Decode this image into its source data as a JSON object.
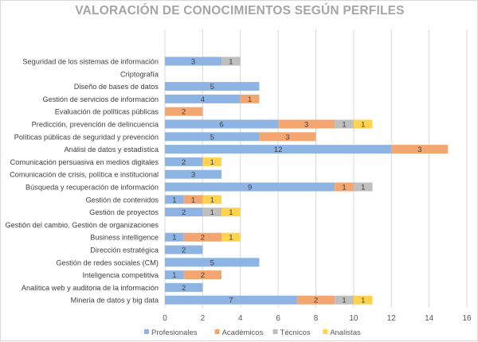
{
  "chart_data": {
    "type": "bar",
    "orientation": "horizontal",
    "stacked": true,
    "title": "VALORACIÓN DE CONOCIMIENTOS SEGÚN PERFILES",
    "xlabel": "",
    "ylabel": "",
    "xlim": [
      0,
      16
    ],
    "xticks": [
      0,
      2,
      4,
      6,
      8,
      10,
      12,
      14,
      16
    ],
    "grid": true,
    "legend_position": "bottom",
    "categories": [
      "Seguridad de los sistemas de información",
      "Criptografía",
      "Diseño de bases de datos",
      "Gestión de servicios de información",
      "Evaluación de políticas públicas",
      "Predicción, prevención de delincuencia",
      "Políticas públicas de seguridad y prevención",
      "Análisi de datos y estadística",
      "Comunicación persuasiva en medios digitales",
      "Comunicación de crisis, política e institucional",
      "Búsqueda y recuperación de información",
      "Gestión de contenidos",
      "Gestión de proyectos",
      "Gestión del cambio. Gestión de organizaciones",
      "Business intelligence",
      "Dirección estratégica",
      "Gestión de redes sociales (CM)",
      "Inteligencia competitiva",
      "Analítica web y auditoria de la información",
      "Mineria de datos y big data"
    ],
    "series": [
      {
        "name": "Profesionales",
        "color": "#8eb4e3",
        "values": [
          3,
          0,
          5,
          4,
          0,
          6,
          5,
          12,
          2,
          3,
          9,
          1,
          2,
          0,
          1,
          2,
          5,
          1,
          2,
          7
        ]
      },
      {
        "name": "Académicos",
        "color": "#f4a671",
        "values": [
          0,
          0,
          0,
          1,
          2,
          3,
          3,
          3,
          0,
          0,
          1,
          1,
          0,
          0,
          2,
          0,
          0,
          2,
          0,
          2
        ]
      },
      {
        "name": "Técnicos",
        "color": "#bfbfbf",
        "values": [
          1,
          0,
          0,
          0,
          0,
          1,
          0,
          0,
          0,
          0,
          1,
          0,
          1,
          0,
          0,
          0,
          0,
          0,
          0,
          1
        ]
      },
      {
        "name": "Analistas",
        "color": "#ffd34e",
        "values": [
          0,
          0,
          0,
          0,
          0,
          1,
          0,
          0,
          1,
          0,
          0,
          1,
          1,
          0,
          1,
          0,
          0,
          0,
          0,
          1
        ]
      }
    ]
  }
}
